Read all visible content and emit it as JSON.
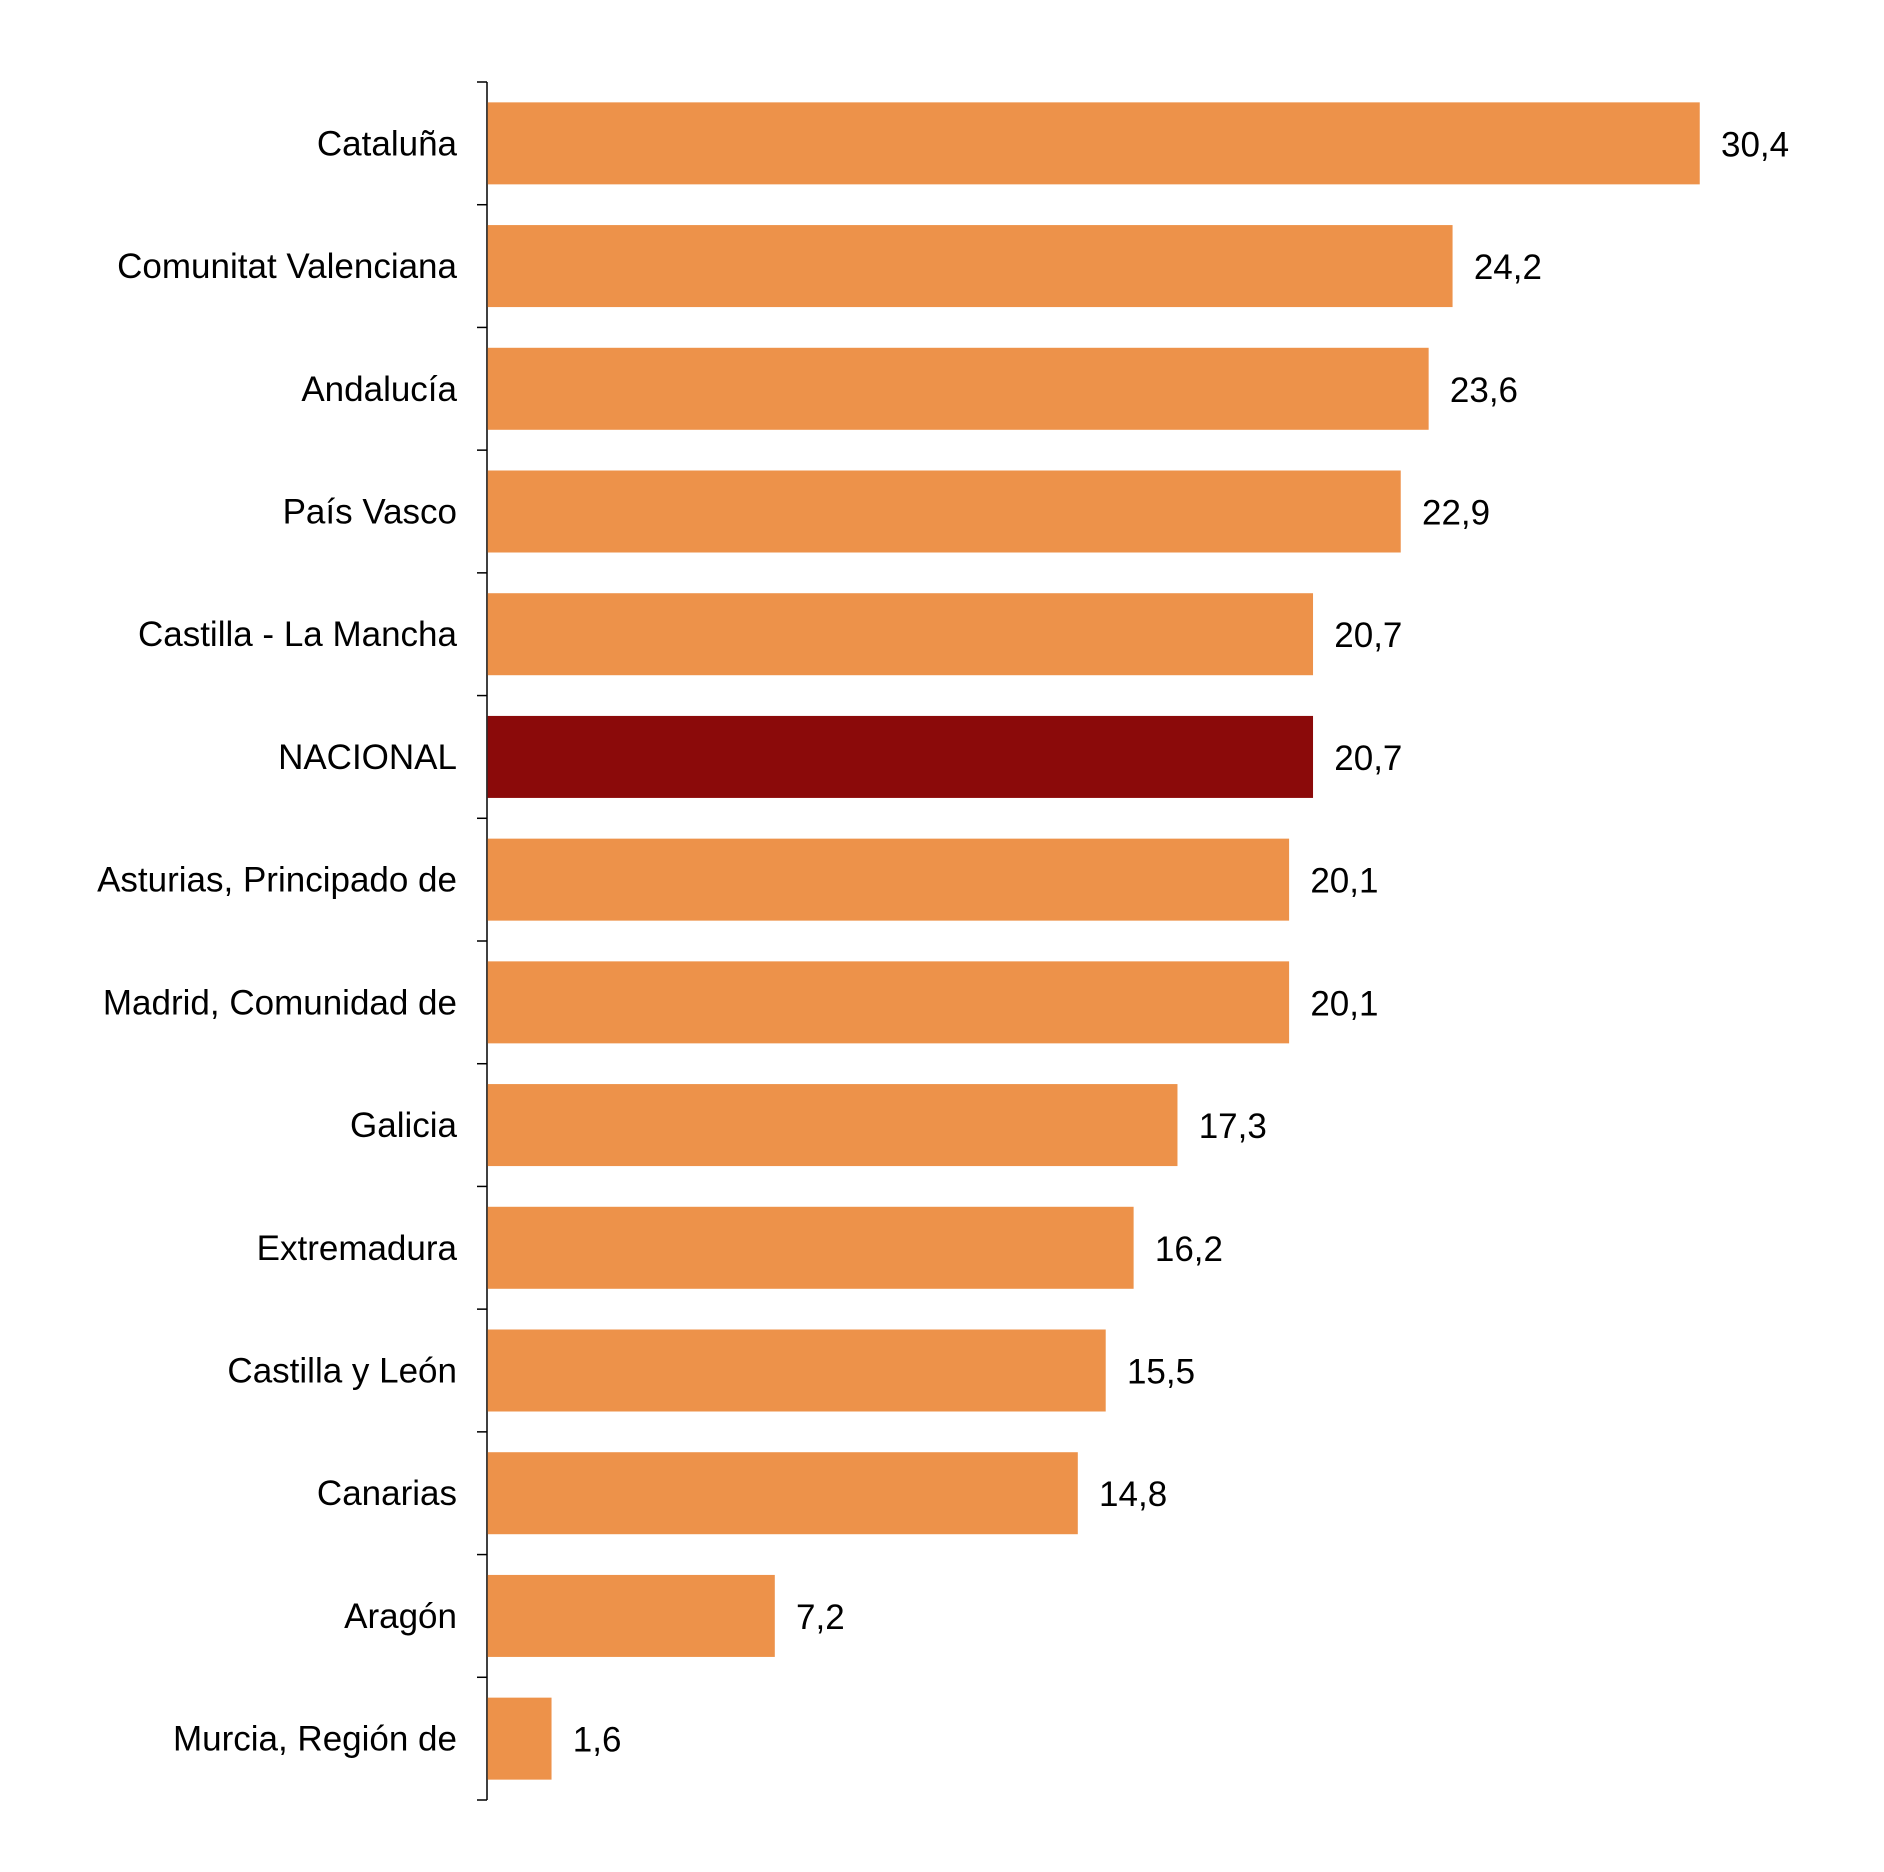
{
  "chart_data": {
    "type": "bar",
    "orientation": "horizontal",
    "categories": [
      "Cataluña",
      "Comunitat Valenciana",
      "Andalucía",
      "País Vasco",
      "Castilla - La Mancha",
      "NACIONAL",
      "Asturias, Principado de",
      "Madrid, Comunidad de",
      "Galicia",
      "Extremadura",
      "Castilla y León",
      "Canarias",
      "Aragón",
      "Murcia, Región de"
    ],
    "values": [
      30.4,
      24.2,
      23.6,
      22.9,
      20.7,
      20.7,
      20.1,
      20.1,
      17.3,
      16.2,
      15.5,
      14.8,
      7.2,
      1.6
    ],
    "value_labels": [
      "30,4",
      "24,2",
      "23,6",
      "22,9",
      "20,7",
      "20,7",
      "20,1",
      "20,1",
      "17,3",
      "16,2",
      "15,5",
      "14,8",
      "7,2",
      "1,6"
    ],
    "highlight_category": "NACIONAL",
    "colors": {
      "bar": "#ED924A",
      "highlight": "#8B0A0A",
      "axis": "#000000",
      "text": "#000000"
    },
    "title": "",
    "xlabel": "",
    "ylabel": "",
    "xlim": [
      0,
      30.4
    ],
    "grid": false,
    "legend": "none",
    "data_labels": "outside-end"
  }
}
